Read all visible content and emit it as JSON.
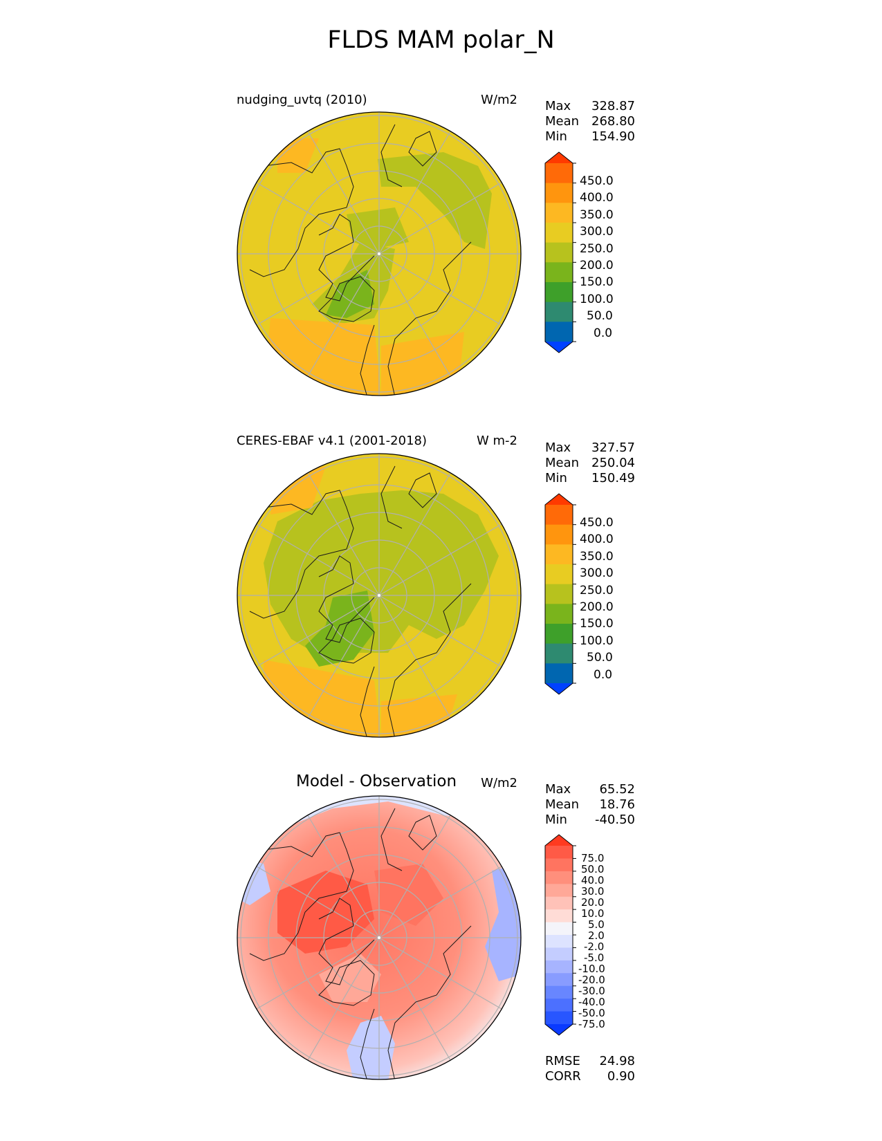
{
  "figure": {
    "title": "FLDS MAM polar_N"
  },
  "colors": {
    "panel1_levels": [
      "#0041ff",
      "#0066b0",
      "#2e8a70",
      "#3ea02a",
      "#7ab41c",
      "#b7c21e",
      "#e8cc22",
      "#fdb822",
      "#ff950e",
      "#ff6a08",
      "#ff3a00"
    ],
    "diff_levels": [
      "#0a3aff",
      "#2856ff",
      "#4c70ff",
      "#6886ff",
      "#889cff",
      "#a7b4ff",
      "#c4cdff",
      "#dde3ff",
      "#f4f4fa",
      "#ffdcd6",
      "#ffc2b8",
      "#ffa898",
      "#ff8f7c",
      "#ff7460",
      "#ff5a46",
      "#ff3a20"
    ],
    "land_outline": "#1a1a1a",
    "grid": "#b0b0b0"
  },
  "panels": [
    {
      "title": "nudging_uvtq (2010)",
      "units": "W/m2",
      "stats": [
        {
          "label": "Max",
          "value": "328.87"
        },
        {
          "label": "Mean",
          "value": "268.80"
        },
        {
          "label": "Min",
          "value": "154.90"
        }
      ],
      "colorbar_labels": [
        "450.0",
        "400.0",
        "350.0",
        "300.0",
        "250.0",
        "200.0",
        "150.0",
        "100.0",
        "50.0",
        "0.0"
      ]
    },
    {
      "title": "CERES-EBAF v4.1 (2001-2018)",
      "units": "W m-2",
      "stats": [
        {
          "label": "Max",
          "value": "327.57"
        },
        {
          "label": "Mean",
          "value": "250.04"
        },
        {
          "label": "Min",
          "value": "150.49"
        }
      ],
      "colorbar_labels": [
        "450.0",
        "400.0",
        "350.0",
        "300.0",
        "250.0",
        "200.0",
        "150.0",
        "100.0",
        "50.0",
        "0.0"
      ]
    },
    {
      "title": "Model - Observation",
      "units": "W/m2",
      "stats": [
        {
          "label": "Max",
          "value": "65.52"
        },
        {
          "label": "Mean",
          "value": "18.76"
        },
        {
          "label": "Min",
          "value": "-40.50"
        }
      ],
      "colorbar_labels": [
        "75.0",
        "50.0",
        "40.0",
        "30.0",
        "20.0",
        "10.0",
        "5.0",
        "2.0",
        "-2.0",
        "-5.0",
        "-10.0",
        "-20.0",
        "-30.0",
        "-40.0",
        "-50.0",
        "-75.0"
      ],
      "metrics": [
        {
          "label": "RMSE",
          "value": "24.98"
        },
        {
          "label": "CORR",
          "value": "0.90"
        }
      ]
    }
  ],
  "chart_data": [
    {
      "type": "heatmap",
      "title": "nudging_uvtq (2010)",
      "projection": "north polar stereographic",
      "units": "W/m2",
      "summary": {
        "max": 328.87,
        "mean": 268.8,
        "min": 154.9
      },
      "levels": [
        0,
        50,
        100,
        150,
        200,
        250,
        300,
        350,
        400,
        450
      ],
      "colorbar_extend": "both"
    },
    {
      "type": "heatmap",
      "title": "CERES-EBAF v4.1 (2001-2018)",
      "projection": "north polar stereographic",
      "units": "W m-2",
      "summary": {
        "max": 327.57,
        "mean": 250.04,
        "min": 150.49
      },
      "levels": [
        0,
        50,
        100,
        150,
        200,
        250,
        300,
        350,
        400,
        450
      ],
      "colorbar_extend": "both"
    },
    {
      "type": "heatmap",
      "title": "Model - Observation",
      "projection": "north polar stereographic",
      "units": "W/m2",
      "summary": {
        "max": 65.52,
        "mean": 18.76,
        "min": -40.5,
        "rmse": 24.98,
        "corr": 0.9
      },
      "levels": [
        -75,
        -50,
        -40,
        -30,
        -20,
        -10,
        -5,
        -2,
        2,
        5,
        10,
        20,
        30,
        40,
        50,
        75
      ],
      "colorbar_extend": "both"
    }
  ]
}
